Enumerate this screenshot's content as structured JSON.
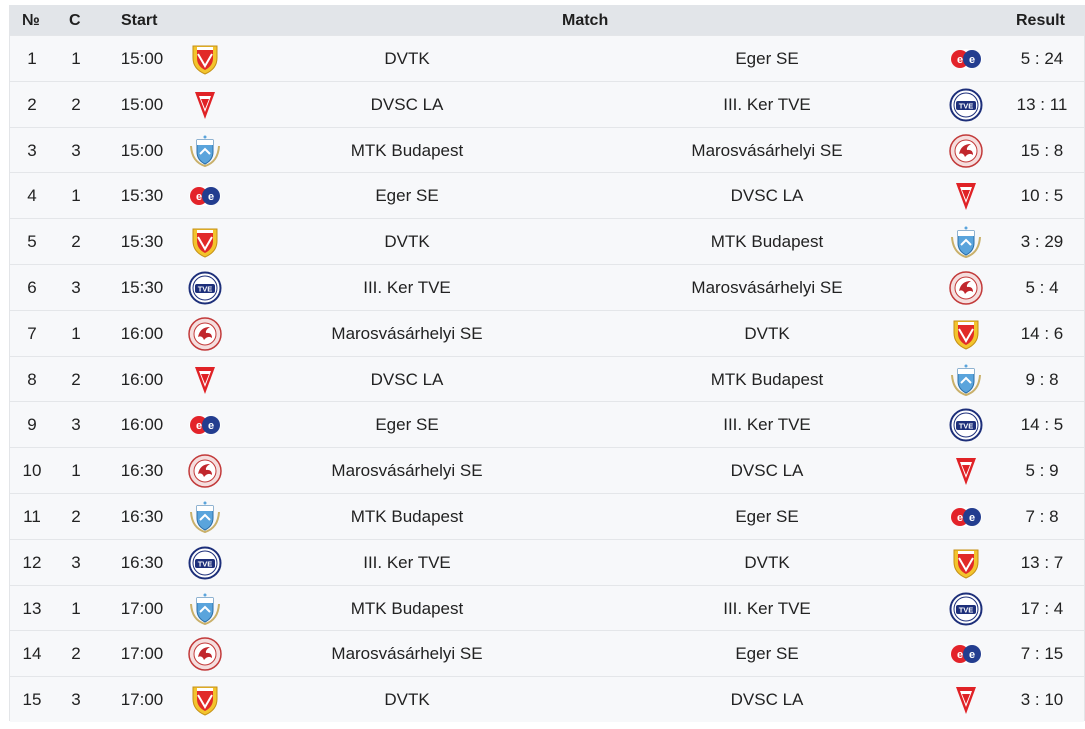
{
  "header": {
    "no": "№",
    "court": "C",
    "start": "Start",
    "match": "Match",
    "result": "Result"
  },
  "matches": [
    {
      "no": "1",
      "court": "1",
      "start": "15:00",
      "home": "DVTK",
      "away": "Eger SE",
      "result": "5 : 24",
      "home_logo": "dvtk-crest-icon",
      "away_logo": "eger-se-logo-icon"
    },
    {
      "no": "2",
      "court": "2",
      "start": "15:00",
      "home": "DVSC LA",
      "away": "III. Ker TVE",
      "result": "13 : 11",
      "home_logo": "dvsc-pennant-icon",
      "away_logo": "tve-badge-icon"
    },
    {
      "no": "3",
      "court": "3",
      "start": "15:00",
      "home": "MTK Budapest",
      "away": "Marosvásárhelyi SE",
      "result": "15 : 8",
      "home_logo": "mtk-crest-icon",
      "away_logo": "marosvasarhely-seal-icon"
    },
    {
      "no": "4",
      "court": "1",
      "start": "15:30",
      "home": "Eger SE",
      "away": "DVSC LA",
      "result": "10 : 5",
      "home_logo": "eger-se-logo-icon",
      "away_logo": "dvsc-pennant-icon"
    },
    {
      "no": "5",
      "court": "2",
      "start": "15:30",
      "home": "DVTK",
      "away": "MTK Budapest",
      "result": "3 : 29",
      "home_logo": "dvtk-crest-icon",
      "away_logo": "mtk-crest-icon"
    },
    {
      "no": "6",
      "court": "3",
      "start": "15:30",
      "home": "III. Ker TVE",
      "away": "Marosvásárhelyi SE",
      "result": "5 : 4",
      "home_logo": "tve-badge-icon",
      "away_logo": "marosvasarhely-seal-icon"
    },
    {
      "no": "7",
      "court": "1",
      "start": "16:00",
      "home": "Marosvásárhelyi SE",
      "away": "DVTK",
      "result": "14 : 6",
      "home_logo": "marosvasarhely-seal-icon",
      "away_logo": "dvtk-crest-icon"
    },
    {
      "no": "8",
      "court": "2",
      "start": "16:00",
      "home": "DVSC LA",
      "away": "MTK Budapest",
      "result": "9 : 8",
      "home_logo": "dvsc-pennant-icon",
      "away_logo": "mtk-crest-icon"
    },
    {
      "no": "9",
      "court": "3",
      "start": "16:00",
      "home": "Eger SE",
      "away": "III. Ker TVE",
      "result": "14 : 5",
      "home_logo": "eger-se-logo-icon",
      "away_logo": "tve-badge-icon"
    },
    {
      "no": "10",
      "court": "1",
      "start": "16:30",
      "home": "Marosvásárhelyi SE",
      "away": "DVSC LA",
      "result": "5 : 9",
      "home_logo": "marosvasarhely-seal-icon",
      "away_logo": "dvsc-pennant-icon"
    },
    {
      "no": "11",
      "court": "2",
      "start": "16:30",
      "home": "MTK Budapest",
      "away": "Eger SE",
      "result": "7 : 8",
      "home_logo": "mtk-crest-icon",
      "away_logo": "eger-se-logo-icon"
    },
    {
      "no": "12",
      "court": "3",
      "start": "16:30",
      "home": "III. Ker TVE",
      "away": "DVTK",
      "result": "13 : 7",
      "home_logo": "tve-badge-icon",
      "away_logo": "dvtk-crest-icon"
    },
    {
      "no": "13",
      "court": "1",
      "start": "17:00",
      "home": "MTK Budapest",
      "away": "III. Ker TVE",
      "result": "17 : 4",
      "home_logo": "mtk-crest-icon",
      "away_logo": "tve-badge-icon"
    },
    {
      "no": "14",
      "court": "2",
      "start": "17:00",
      "home": "Marosvásárhelyi SE",
      "away": "Eger SE",
      "result": "7 : 15",
      "home_logo": "marosvasarhely-seal-icon",
      "away_logo": "eger-se-logo-icon"
    },
    {
      "no": "15",
      "court": "3",
      "start": "17:00",
      "home": "DVTK",
      "away": "DVSC LA",
      "result": "3 : 10",
      "home_logo": "dvtk-crest-icon",
      "away_logo": "dvsc-pennant-icon"
    }
  ],
  "colors": {
    "header_bg": "#e2e5e9",
    "stripe_bg": "#f7f8fa",
    "row_border": "#e4e6e9",
    "text": "#222222"
  }
}
